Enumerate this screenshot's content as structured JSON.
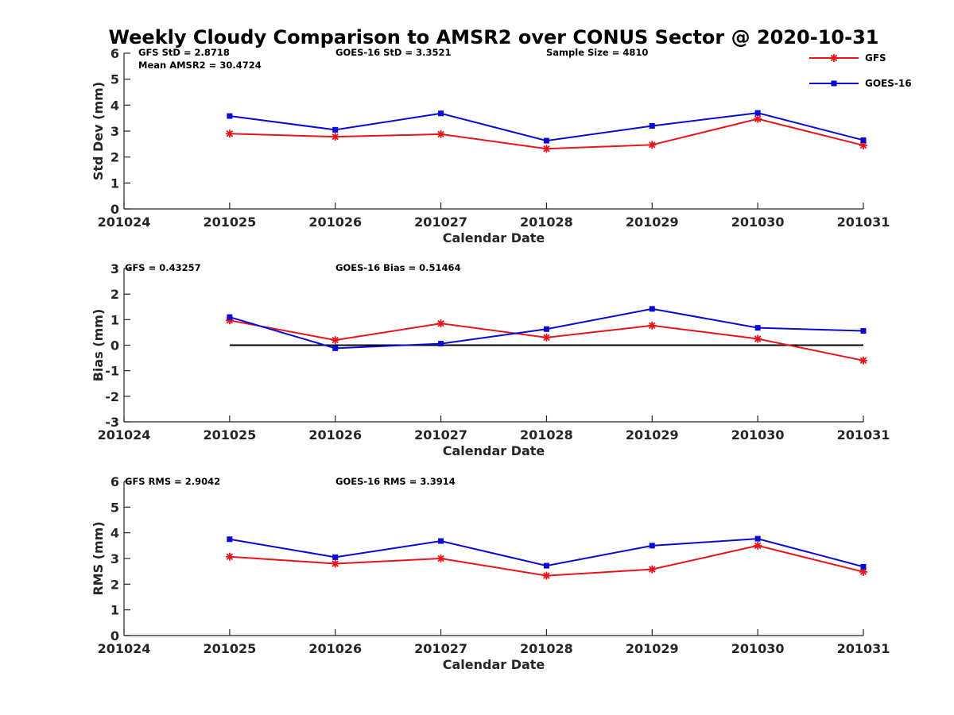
{
  "title": "Weekly Cloudy Comparison to AMSR2 over CONUS Sector @ 2020-10-31",
  "legend": {
    "position": "top-right",
    "entries": [
      "GFS",
      "GOES-16"
    ]
  },
  "colors": {
    "GFS": "#e8141c",
    "GOES-16": "#0a0ad6",
    "zero_line": "#000000",
    "axis": "#262626"
  },
  "chart_data": [
    {
      "type": "line",
      "x": [
        "201024",
        "201025",
        "201026",
        "201027",
        "201028",
        "201029",
        "201030",
        "201031"
      ],
      "xlabel": "Calendar Date",
      "ylabel": "Std Dev (mm)",
      "ylim": [
        0,
        6
      ],
      "yticks": [
        0,
        1,
        2,
        3,
        4,
        5,
        6
      ],
      "annotations": [
        "GFS StD = 2.8718",
        "GOES-16 StD = 3.3521",
        "Sample Size = 4810",
        "Mean AMSR2 = 30.4724"
      ],
      "series": [
        {
          "name": "GFS",
          "marker": "asterisk",
          "x": [
            "201025",
            "201026",
            "201027",
            "201028",
            "201029",
            "201030",
            "201031"
          ],
          "values": [
            2.9,
            2.78,
            2.88,
            2.32,
            2.47,
            3.47,
            2.45
          ]
        },
        {
          "name": "GOES-16",
          "marker": "square",
          "x": [
            "201025",
            "201026",
            "201027",
            "201028",
            "201029",
            "201030",
            "201031"
          ],
          "values": [
            3.58,
            3.05,
            3.68,
            2.63,
            3.2,
            3.7,
            2.65
          ]
        }
      ]
    },
    {
      "type": "line",
      "x": [
        "201024",
        "201025",
        "201026",
        "201027",
        "201028",
        "201029",
        "201030",
        "201031"
      ],
      "xlabel": "Calendar Date",
      "ylabel": "Bias (mm)",
      "ylim": [
        -3,
        3
      ],
      "yticks": [
        -3,
        -2,
        -1,
        0,
        1,
        2,
        3
      ],
      "zero_line": true,
      "annotations": [
        "GFS = 0.43257",
        "GOES-16 Bias  = 0.51464"
      ],
      "series": [
        {
          "name": "GFS",
          "marker": "asterisk",
          "x": [
            "201025",
            "201026",
            "201027",
            "201028",
            "201029",
            "201030",
            "201031"
          ],
          "values": [
            0.97,
            0.2,
            0.85,
            0.3,
            0.77,
            0.25,
            -0.6
          ]
        },
        {
          "name": "GOES-16",
          "marker": "square",
          "x": [
            "201025",
            "201026",
            "201027",
            "201028",
            "201029",
            "201030",
            "201031"
          ],
          "values": [
            1.1,
            -0.12,
            0.06,
            0.63,
            1.42,
            0.68,
            0.56
          ]
        }
      ]
    },
    {
      "type": "line",
      "x": [
        "201024",
        "201025",
        "201026",
        "201027",
        "201028",
        "201029",
        "201030",
        "201031"
      ],
      "xlabel": "Calendar Date",
      "ylabel": "RMS (mm)",
      "ylim": [
        0,
        6
      ],
      "yticks": [
        0,
        1,
        2,
        3,
        4,
        5,
        6
      ],
      "annotations": [
        "GFS RMS = 2.9042",
        "GOES-16 RMS = 3.3914"
      ],
      "series": [
        {
          "name": "GFS",
          "marker": "asterisk",
          "x": [
            "201025",
            "201026",
            "201027",
            "201028",
            "201029",
            "201030",
            "201031"
          ],
          "values": [
            3.07,
            2.8,
            3.0,
            2.33,
            2.58,
            3.5,
            2.48
          ]
        },
        {
          "name": "GOES-16",
          "marker": "square",
          "x": [
            "201025",
            "201026",
            "201027",
            "201028",
            "201029",
            "201030",
            "201031"
          ],
          "values": [
            3.75,
            3.05,
            3.68,
            2.72,
            3.5,
            3.77,
            2.68
          ]
        }
      ]
    }
  ]
}
